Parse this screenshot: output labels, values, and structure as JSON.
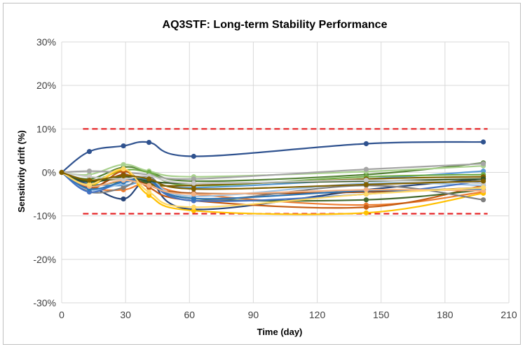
{
  "chart_data": {
    "type": "line",
    "title": "AQ3STF: Long-term Stability Performance",
    "xlabel": "Time (day)",
    "ylabel": "Sensitivity drift (%)",
    "xlim": [
      0,
      210
    ],
    "ylim": [
      -30,
      30
    ],
    "x_ticks": [
      "0",
      "30",
      "60",
      "90",
      "120",
      "150",
      "180",
      "210"
    ],
    "y_ticks": [
      "30%",
      "20%",
      "10%",
      "0%",
      "-10%",
      "-20%",
      "-30%"
    ],
    "grid": true,
    "limit_lines": [
      {
        "y": 10,
        "x_range": [
          10,
          200
        ],
        "color": "#e31a1c",
        "style": "dashed"
      },
      {
        "y": -9.5,
        "x_range": [
          10,
          200
        ],
        "color": "#e31a1c",
        "style": "dashed"
      }
    ],
    "series": [
      {
        "color": "#2f528f",
        "x": [
          0,
          13,
          29,
          41,
          62,
          143,
          198
        ],
        "y": [
          0,
          4.8,
          6.1,
          6.9,
          3.7,
          6.6,
          7.0
        ]
      },
      {
        "color": "#548235",
        "x": [
          0,
          13,
          29,
          41,
          62,
          143,
          198
        ],
        "y": [
          0,
          -1.5,
          1.2,
          0.2,
          -2.0,
          -0.5,
          2.2
        ]
      },
      {
        "color": "#a9d18e",
        "x": [
          0,
          13,
          29,
          41,
          62,
          143,
          198
        ],
        "y": [
          0,
          -0.5,
          1.8,
          0.3,
          -1.0,
          0.2,
          1.5
        ]
      },
      {
        "color": "#a5a5a5",
        "x": [
          0,
          13,
          29,
          41,
          62,
          143,
          198
        ],
        "y": [
          0,
          0.3,
          0.0,
          -0.5,
          -1.5,
          0.7,
          2.0
        ]
      },
      {
        "color": "#5b9bd5",
        "x": [
          0,
          13,
          29,
          41,
          62,
          143,
          198
        ],
        "y": [
          0,
          -2.5,
          -3.0,
          -2.0,
          -3.5,
          -1.5,
          0.3
        ]
      },
      {
        "color": "#70ad47",
        "x": [
          0,
          13,
          29,
          41,
          62,
          143,
          198
        ],
        "y": [
          0,
          -2.0,
          0.5,
          0.0,
          -3.0,
          -1.0,
          -0.5
        ]
      },
      {
        "color": "#264478",
        "x": [
          0,
          13,
          29,
          41,
          62,
          143,
          198
        ],
        "y": [
          0,
          -3.0,
          -6.1,
          -2.0,
          -8.5,
          -4.0,
          -1.5
        ]
      },
      {
        "color": "#ed7d31",
        "x": [
          0,
          13,
          29,
          41,
          62,
          143,
          198
        ],
        "y": [
          0,
          -3.5,
          -4.0,
          -2.5,
          -5.0,
          -7.5,
          -4.5
        ]
      },
      {
        "color": "#ffc000",
        "x": [
          0,
          13,
          29,
          41,
          62,
          143,
          198
        ],
        "y": [
          0,
          -3.0,
          0.5,
          -5.3,
          -8.8,
          -9.3,
          -4.8
        ]
      },
      {
        "color": "#c55a11",
        "x": [
          0,
          13,
          29,
          41,
          62,
          143,
          198
        ],
        "y": [
          0,
          -4.0,
          0.3,
          -3.5,
          -6.5,
          -8.0,
          -3.0
        ]
      },
      {
        "color": "#43682b",
        "x": [
          0,
          13,
          29,
          41,
          62,
          143,
          198
        ],
        "y": [
          0,
          -3.0,
          -2.0,
          -2.5,
          -6.0,
          -6.3,
          -4.0
        ]
      },
      {
        "color": "#7f6000",
        "x": [
          0,
          13,
          29,
          41,
          62,
          143,
          198
        ],
        "y": [
          0,
          -2.0,
          -1.5,
          -2.8,
          -3.0,
          -1.5,
          -1.0
        ]
      },
      {
        "color": "#9e480e",
        "x": [
          0,
          13,
          29,
          41,
          62,
          143,
          198
        ],
        "y": [
          0,
          -3.5,
          -0.5,
          -3.0,
          -4.8,
          -4.5,
          -3.5
        ]
      },
      {
        "color": "#7f7f7f",
        "x": [
          0,
          13,
          29,
          41,
          62,
          143,
          198
        ],
        "y": [
          0,
          -4.5,
          -3.5,
          -1.0,
          -6.5,
          -3.0,
          -6.3
        ]
      },
      {
        "color": "#9dc3e6",
        "x": [
          0,
          13,
          29,
          41,
          62,
          143,
          198
        ],
        "y": [
          0,
          -4.0,
          -2.5,
          -1.5,
          -5.5,
          -2.5,
          -3.0
        ]
      },
      {
        "color": "#4472c4",
        "x": [
          0,
          13,
          29,
          41,
          62,
          143,
          198
        ],
        "y": [
          0,
          -4.5,
          -2.0,
          -2.0,
          -6.5,
          -5.0,
          -2.0
        ]
      },
      {
        "color": "#2e75b6",
        "x": [
          0,
          13,
          29,
          41,
          62,
          143,
          198
        ],
        "y": [
          0,
          -3.8,
          -2.2,
          -1.8,
          -6.0,
          -4.2,
          -4.0
        ]
      },
      {
        "color": "#375623",
        "x": [
          0,
          13,
          29,
          41,
          62,
          143,
          198
        ],
        "y": [
          0,
          -2.2,
          -1.0,
          -2.0,
          -2.5,
          -2.0,
          -1.5
        ]
      },
      {
        "color": "#f4b183",
        "x": [
          0,
          13,
          29,
          41,
          62,
          143,
          198
        ],
        "y": [
          0,
          -3.2,
          -1.8,
          -3.0,
          -5.0,
          -4.0,
          -4.2
        ]
      },
      {
        "color": "#c9c9c9",
        "x": [
          0,
          13,
          29,
          41,
          62,
          143,
          198
        ],
        "y": [
          0,
          -1.0,
          -1.5,
          -0.8,
          -2.5,
          -1.8,
          -2.5
        ]
      },
      {
        "color": "#ffd966",
        "x": [
          0,
          13,
          29,
          41,
          62,
          143,
          198
        ],
        "y": [
          0,
          -2.8,
          0.8,
          -4.5,
          -8.0,
          -5.0,
          -3.5
        ]
      },
      {
        "color": "#806000",
        "x": [
          0,
          13,
          29,
          41,
          62,
          143,
          198
        ],
        "y": [
          0,
          -1.8,
          -0.8,
          -1.5,
          -3.8,
          -2.8,
          -2.0
        ]
      }
    ]
  }
}
